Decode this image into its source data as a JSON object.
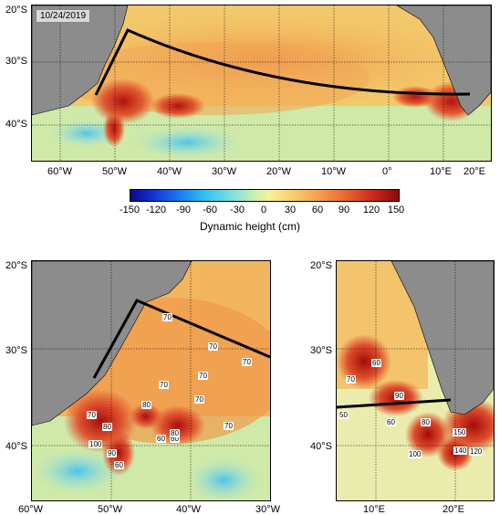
{
  "date": "10/24/2019",
  "colorbar": {
    "ticks": [
      "-150",
      "-120",
      "-90",
      "-60",
      "-30",
      "0",
      "30",
      "60",
      "90",
      "120",
      "150"
    ],
    "title": "Dynamic height (cm)"
  },
  "top_panel": {
    "lat_labels": [
      "20°S",
      "30°S",
      "40°S"
    ],
    "lon_labels": [
      "60°W",
      "50°W",
      "40°W",
      "30°W",
      "20°W",
      "10°W",
      "0°",
      "10°E",
      "20°E"
    ]
  },
  "left_panel": {
    "lat_labels": [
      "20°S",
      "30°S",
      "40°S"
    ],
    "lon_labels": [
      "60°W",
      "50°W",
      "40°W",
      "30°W"
    ],
    "contour_labels": [
      "70",
      "70",
      "70",
      "70",
      "70",
      "80",
      "70",
      "80",
      "60",
      "80",
      "60",
      "70",
      "100",
      "90",
      "60",
      "70"
    ]
  },
  "right_panel": {
    "lat_labels": [
      "20°S",
      "30°S",
      "40°S"
    ],
    "lon_labels": [
      "10°E",
      "20°E"
    ],
    "contour_labels": [
      "60",
      "70",
      "90",
      "60",
      "80",
      "150",
      "100",
      "140",
      "120",
      "50"
    ]
  },
  "colors": {
    "land": "#8c8c8c",
    "track": "#000000",
    "warm": "#d9412b",
    "cool": "#79d8e6"
  }
}
